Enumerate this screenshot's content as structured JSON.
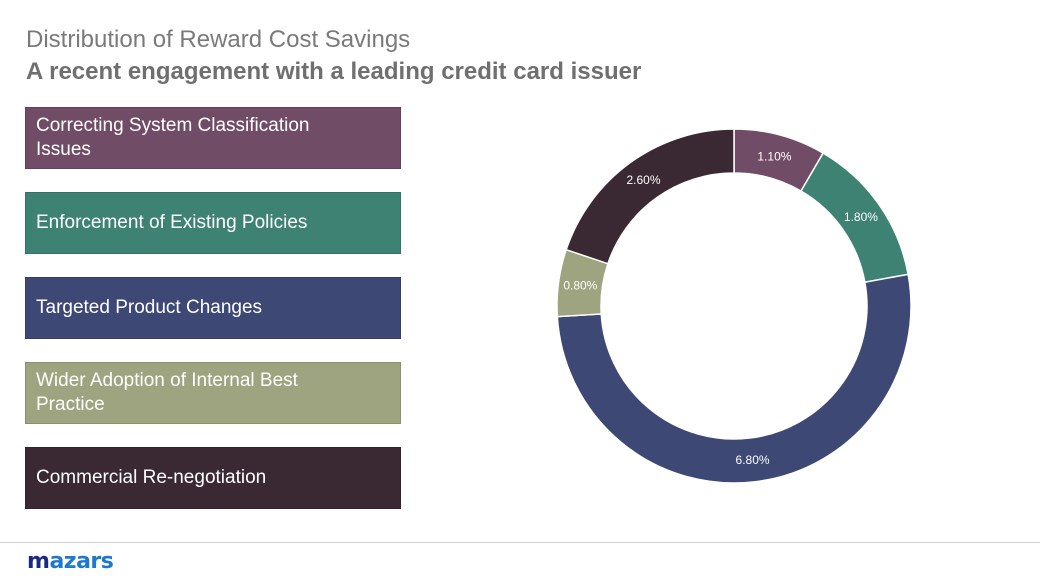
{
  "header": {
    "title": "Distribution of Reward Cost Savings",
    "subtitle": "A recent engagement with a leading credit card issuer"
  },
  "legend": [
    {
      "label": "Correcting System Classification Issues",
      "color": "#714c66"
    },
    {
      "label": "Enforcement of Existing Policies",
      "color": "#3d8273"
    },
    {
      "label": "Targeted Product Changes",
      "color": "#3d4874"
    },
    {
      "label": "Wider Adoption of Internal Best Practice",
      "color": "#9ea47f"
    },
    {
      "label": "Commercial Re-negotiation",
      "color": "#3a2833"
    }
  ],
  "chart_data": {
    "type": "pie",
    "subtype": "donut",
    "title": "Distribution of Reward Cost Savings",
    "categories": [
      "Correcting System Classification Issues",
      "Enforcement of Existing Policies",
      "Targeted Product Changes",
      "Wider Adoption of Internal Best Practice",
      "Commercial Re-negotiation"
    ],
    "values": [
      1.1,
      1.8,
      6.8,
      0.8,
      2.6
    ],
    "labels": [
      "1.10%",
      "1.80%",
      "6.80%",
      "0.80%",
      "2.60%"
    ],
    "colors": [
      "#714c66",
      "#3d8273",
      "#3d4874",
      "#9ea47f",
      "#3a2833"
    ],
    "start_angle": "top, clockwise",
    "legend_position": "left"
  },
  "footer": {
    "logo_first": "m",
    "logo_rest": "azars"
  }
}
